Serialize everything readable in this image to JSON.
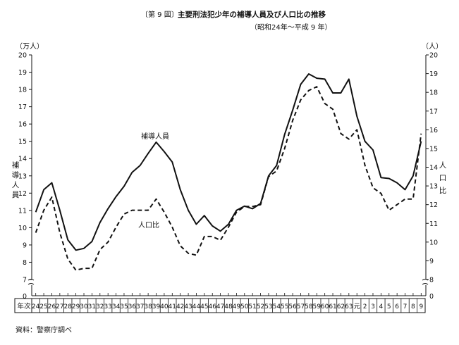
{
  "chart_data": {
    "type": "line",
    "fig_label": "〔第 9 図〕",
    "title": "主要刑法犯少年の補導人員及び人口比の推移",
    "subtitle": "（昭和24年～平成 9 年）",
    "source": "資料：警察庁調べ",
    "left_unit": "（万人）",
    "right_unit": "（人）",
    "left_axis_label": [
      "補",
      "導",
      "人",
      "員"
    ],
    "right_axis_label": [
      "人",
      "口",
      "比"
    ],
    "left_ticks": [
      "7",
      "8",
      "9",
      "10",
      "11",
      "12",
      "13",
      "14",
      "15",
      "16",
      "17",
      "18",
      "19",
      "20"
    ],
    "right_ticks": [
      "8",
      "9",
      "10",
      "11",
      "12",
      "13",
      "14",
      "15",
      "16",
      "17",
      "18",
      "19",
      "20"
    ],
    "zero_label": "0",
    "ylim_left": [
      7,
      20
    ],
    "ylim_right": [
      8,
      20
    ],
    "x_header": "年次",
    "categories": [
      "24",
      "25",
      "26",
      "27",
      "28",
      "29",
      "30",
      "31",
      "32",
      "33",
      "34",
      "35",
      "36",
      "37",
      "38",
      "39",
      "40",
      "41",
      "42",
      "43",
      "44",
      "45",
      "46",
      "47",
      "48",
      "49",
      "50",
      "51",
      "52",
      "53",
      "54",
      "55",
      "56",
      "57",
      "58",
      "59",
      "60",
      "61",
      "62",
      "63",
      "元",
      "2",
      "3",
      "4",
      "5",
      "6",
      "7",
      "8",
      "9"
    ],
    "series": [
      {
        "name": "補導人員",
        "axis": "left",
        "style": "solid",
        "values": [
          10.9,
          12.2,
          12.6,
          11.0,
          9.3,
          8.7,
          8.8,
          9.2,
          10.3,
          11.1,
          11.8,
          12.4,
          13.2,
          13.6,
          14.3,
          14.95,
          14.4,
          13.8,
          12.2,
          11.0,
          10.2,
          10.7,
          10.1,
          9.8,
          10.2,
          11.0,
          11.25,
          11.1,
          11.4,
          13.0,
          13.6,
          15.4,
          16.8,
          18.3,
          18.9,
          18.65,
          18.6,
          17.8,
          17.8,
          18.6,
          16.45,
          15.0,
          14.5,
          12.9,
          12.85,
          12.6,
          12.2,
          13.0,
          15.0
        ]
      },
      {
        "name": "人口比",
        "axis": "right",
        "style": "dashed",
        "values": [
          10.5,
          11.7,
          12.4,
          10.5,
          9.1,
          8.5,
          8.6,
          8.6,
          9.6,
          10.0,
          10.8,
          11.5,
          11.7,
          11.7,
          11.7,
          12.3,
          11.6,
          10.8,
          9.8,
          9.4,
          9.3,
          10.3,
          10.3,
          10.1,
          10.8,
          11.6,
          11.9,
          11.9,
          12.0,
          13.5,
          13.8,
          15.0,
          16.5,
          17.6,
          18.1,
          18.3,
          17.4,
          17.1,
          15.8,
          15.5,
          16.0,
          14.1,
          12.9,
          12.6,
          11.7,
          12.0,
          12.3,
          12.3,
          15.8
        ]
      }
    ]
  }
}
